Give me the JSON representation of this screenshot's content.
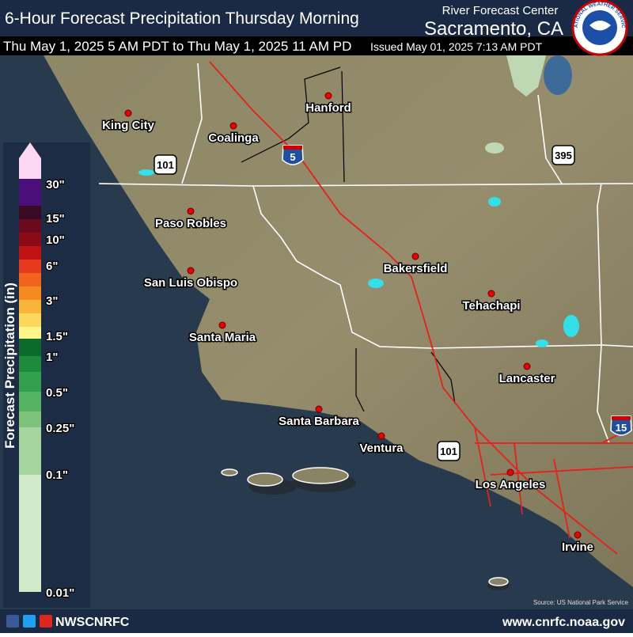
{
  "header": {
    "title": "6-Hour Forecast Precipitation Thursday Morning",
    "agency": "River Forecast Center",
    "office": "Sacramento, CA",
    "valid": "Thu May 1, 2025 5 AM PDT to Thu May 1, 2025 11 AM PD",
    "issued": "Issued May 01, 2025 7:13 AM PDT",
    "logo_text": "NATIONAL WEATHER SERVICE"
  },
  "legend": {
    "title": "Forecast Precipitation (in)",
    "labels": [
      "30\"",
      "15\"",
      "10\"",
      "6\"",
      "3\"",
      "1.5\"",
      "1\"",
      "0.5\"",
      "0.25\"",
      "0.1\"",
      "0.01\""
    ]
  },
  "cities": [
    "King City",
    "Coalinga",
    "Hanford",
    "Paso Robles",
    "San Luis Obispo",
    "Santa Maria",
    "Bakersfield",
    "Tehachapi",
    "Lancaster",
    "Santa Barbara",
    "Ventura",
    "Los Angeles",
    "Irvine"
  ],
  "highways": [
    "5",
    "101",
    "395",
    "15",
    "101"
  ],
  "source": "Source: US National Park Service",
  "footer": {
    "social": "NWSCNRFC",
    "url": "www.cnrfc.noaa.gov"
  }
}
